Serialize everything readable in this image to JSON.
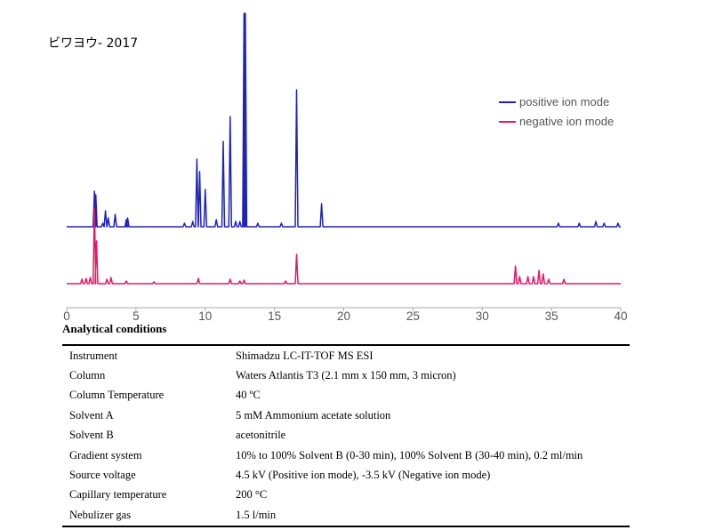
{
  "title": "ビワヨウ- 2017",
  "chart_data": {
    "type": "line",
    "x_ticks": [
      "0",
      "5",
      "10",
      "15",
      "20",
      "25",
      "30",
      "35",
      "40"
    ],
    "xlim": [
      0,
      40
    ],
    "grid": false,
    "legend_placement": "right",
    "series": [
      {
        "name": "positive ion mode",
        "color": "#1f24b8",
        "peaks": [
          [
            2.0,
            0.2
          ],
          [
            2.1,
            0.18
          ],
          [
            2.6,
            0.02
          ],
          [
            2.8,
            0.09
          ],
          [
            3.0,
            0.05
          ],
          [
            3.5,
            0.07
          ],
          [
            4.3,
            0.04
          ],
          [
            4.4,
            0.05
          ],
          [
            8.5,
            0.02
          ],
          [
            9.1,
            0.03
          ],
          [
            9.4,
            0.38
          ],
          [
            9.6,
            0.31
          ],
          [
            10.0,
            0.21
          ],
          [
            10.8,
            0.04
          ],
          [
            11.3,
            0.48
          ],
          [
            11.8,
            0.62
          ],
          [
            12.2,
            0.03
          ],
          [
            12.5,
            0.03
          ],
          [
            12.8,
            1.2
          ],
          [
            12.9,
            1.2
          ],
          [
            13.8,
            0.02
          ],
          [
            15.5,
            0.02
          ],
          [
            16.6,
            0.77
          ],
          [
            18.4,
            0.13
          ],
          [
            35.5,
            0.02
          ],
          [
            37.0,
            0.02
          ],
          [
            38.2,
            0.03
          ],
          [
            38.8,
            0.02
          ],
          [
            39.8,
            0.02
          ]
        ]
      },
      {
        "name": "negative ion mode",
        "color": "#e0186a",
        "peaks": [
          [
            1.1,
            0.05
          ],
          [
            1.4,
            0.06
          ],
          [
            1.7,
            0.07
          ],
          [
            2.0,
            0.85
          ],
          [
            2.15,
            0.48
          ],
          [
            2.9,
            0.05
          ],
          [
            3.2,
            0.07
          ],
          [
            4.3,
            0.03
          ],
          [
            6.3,
            0.02
          ],
          [
            9.5,
            0.06
          ],
          [
            11.8,
            0.05
          ],
          [
            12.5,
            0.03
          ],
          [
            12.8,
            0.04
          ],
          [
            15.8,
            0.03
          ],
          [
            16.6,
            0.33
          ],
          [
            32.4,
            0.2
          ],
          [
            32.7,
            0.08
          ],
          [
            33.3,
            0.08
          ],
          [
            33.7,
            0.08
          ],
          [
            34.1,
            0.15
          ],
          [
            34.4,
            0.11
          ],
          [
            34.8,
            0.05
          ],
          [
            35.9,
            0.05
          ]
        ]
      }
    ]
  },
  "conditions": {
    "heading": "Analytical conditions",
    "rows": [
      {
        "label": "Instrument",
        "value": "Shimadzu LC-IT-TOF MS ESI"
      },
      {
        "label": "Column",
        "value": "Waters Atlantis T3 (2.1 mm x 150 mm, 3 micron)"
      },
      {
        "label": "Column Temperature",
        "value": "40 ºC"
      },
      {
        "label": "Solvent A",
        "value": "5 mM Ammonium acetate solution"
      },
      {
        "label": "Solvent B",
        "value": "acetonitrile"
      },
      {
        "label": "Gradient system",
        "value": "10% to 100% Solvent B (0-30 min), 100% Solvent B (30-40 min), 0.2 ml/min"
      },
      {
        "label": "Source voltage",
        "value": "4.5 kV (Positive ion mode), -3.5 kV (Negative ion mode)"
      },
      {
        "label": "Capillary temperature",
        "value": "200 °C"
      },
      {
        "label": "Nebulizer gas",
        "value": "1.5 l/min"
      }
    ]
  }
}
